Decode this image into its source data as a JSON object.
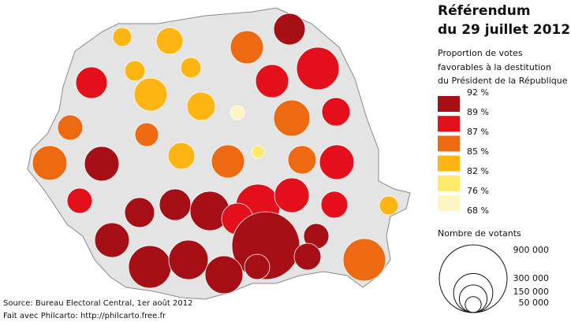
{
  "title": [
    "Référendum",
    "du 29 juillet 2012"
  ],
  "legend": {
    "title": [
      "Proportion de votes",
      "favorables à la destitution",
      "du Président de la République"
    ],
    "labels": [
      "92 %",
      "89 %",
      "87 %",
      "85 %",
      "82 %",
      "76 %",
      "68 %"
    ],
    "colors": [
      "#a50f15",
      "#e3101b",
      "#ee6a12",
      "#fcb512",
      "#fde96a",
      "#fef6c2"
    ]
  },
  "size_legend": {
    "title": "Nombre de votants",
    "sizes": [
      {
        "value": 900000,
        "label": "900 000"
      },
      {
        "value": 300000,
        "label": "300 000"
      },
      {
        "value": 150000,
        "label": "150 000"
      },
      {
        "value": 50000,
        "label": "50 000"
      }
    ]
  },
  "source": [
    "Source: Bureau Electoral Central, 1er août 2012",
    "Fait avec Philcarto: http://philcarto.free.fr"
  ]
}
